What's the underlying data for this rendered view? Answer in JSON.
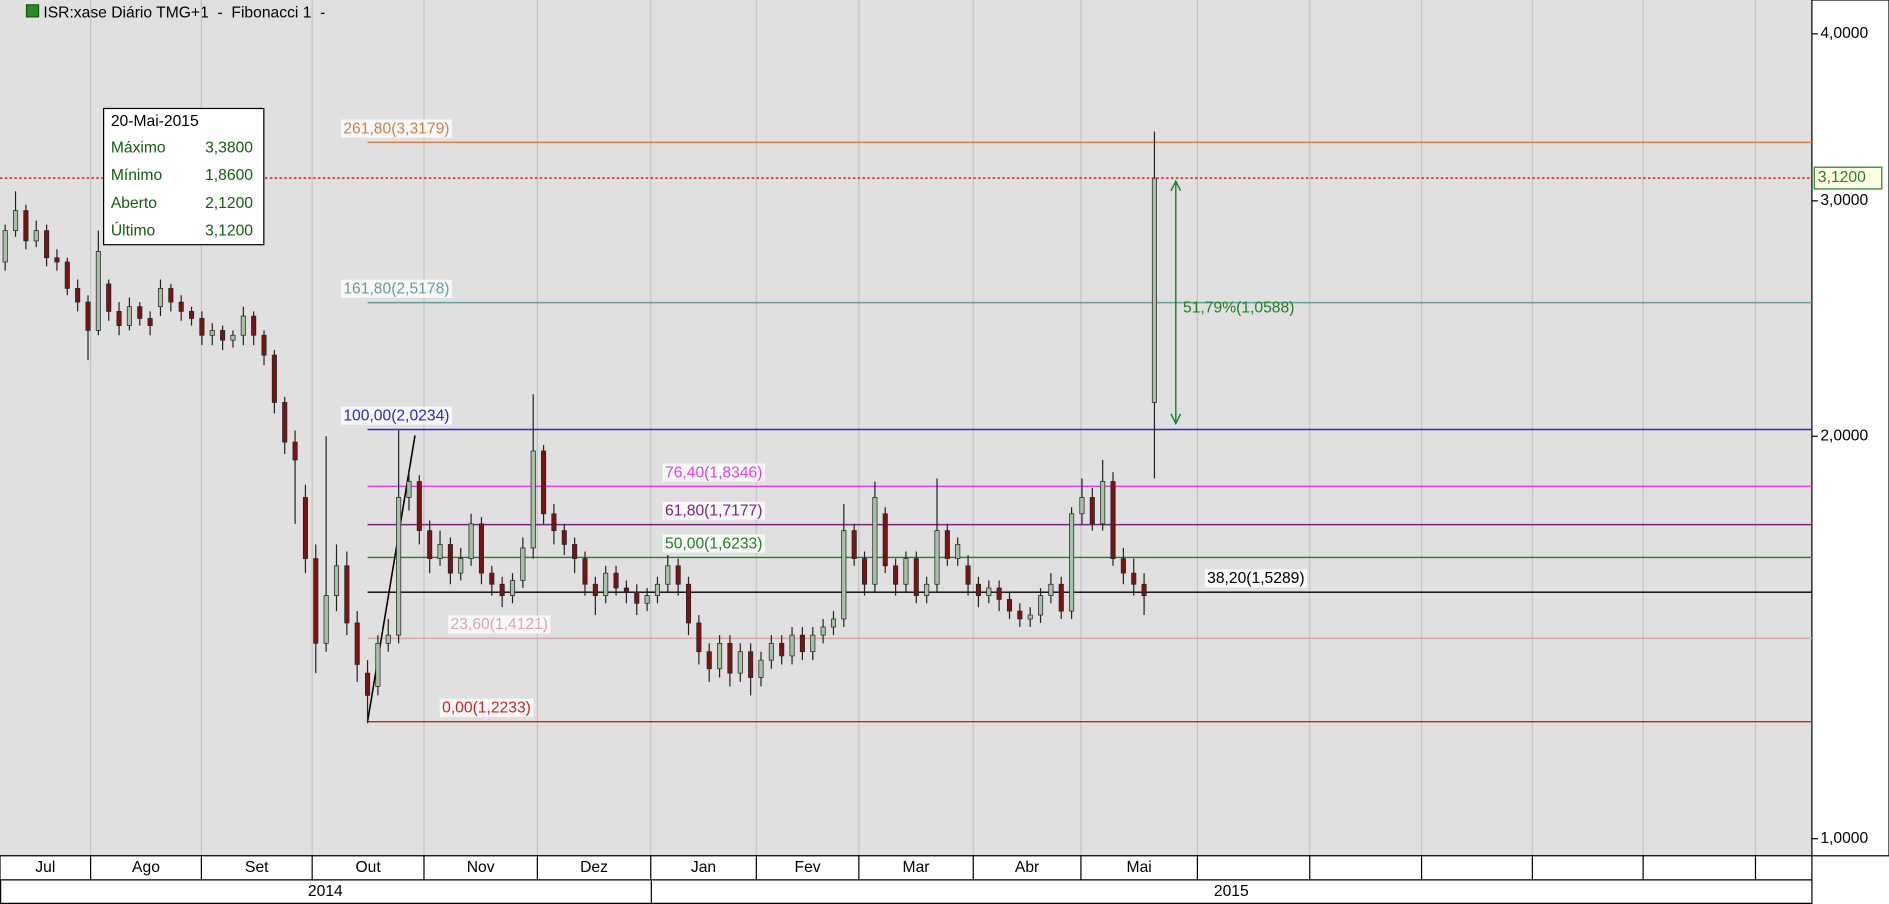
{
  "chart_data": {
    "type": "candlestick",
    "title": "ISR:xase Diário TMG+1  -  Fibonacci 1  -",
    "x": [
      1,
      3,
      5,
      7,
      9,
      11,
      13,
      15,
      17,
      19,
      21,
      23,
      25,
      27,
      29,
      31,
      33,
      35,
      37,
      39,
      41,
      43,
      45,
      47,
      49,
      51,
      53,
      55,
      57,
      59,
      61,
      63,
      65,
      67,
      69,
      71,
      73,
      75,
      77,
      79,
      81,
      83,
      85,
      87,
      89,
      91,
      93,
      95,
      97,
      99,
      101,
      103,
      105,
      107,
      109,
      111,
      113,
      115,
      117,
      119,
      121,
      123,
      125,
      127,
      129,
      131,
      133,
      135,
      137,
      139,
      141,
      143,
      145,
      147,
      149,
      151,
      153,
      155,
      157,
      159,
      161,
      163,
      165,
      167,
      169,
      171,
      173,
      175,
      177,
      179,
      181,
      183,
      185,
      187,
      189,
      191,
      193,
      195,
      197,
      199,
      201,
      203,
      205,
      207,
      209,
      211,
      213,
      215,
      217,
      219,
      221,
      223
    ],
    "open": [
      2.7,
      2.85,
      2.95,
      2.8,
      2.85,
      2.72,
      2.7,
      2.58,
      2.52,
      2.4,
      2.6,
      2.48,
      2.42,
      2.5,
      2.45,
      2.5,
      2.58,
      2.52,
      2.48,
      2.45,
      2.38,
      2.4,
      2.36,
      2.38,
      2.46,
      2.38,
      2.3,
      2.12,
      1.98,
      1.8,
      1.62,
      1.4,
      1.52,
      1.6,
      1.45,
      1.33,
      1.3,
      1.4,
      1.42,
      1.8,
      1.85,
      1.7,
      1.62,
      1.66,
      1.58,
      1.62,
      1.72,
      1.58,
      1.55,
      1.52,
      1.56,
      1.65,
      1.95,
      1.75,
      1.7,
      1.66,
      1.62,
      1.55,
      1.52,
      1.58,
      1.54,
      1.53,
      1.5,
      1.52,
      1.55,
      1.6,
      1.55,
      1.45,
      1.38,
      1.34,
      1.4,
      1.33,
      1.38,
      1.32,
      1.36,
      1.4,
      1.37,
      1.42,
      1.38,
      1.42,
      1.44,
      1.46,
      1.7,
      1.62,
      1.55,
      1.75,
      1.6,
      1.55,
      1.62,
      1.52,
      1.55,
      1.7,
      1.62,
      1.6,
      1.55,
      1.52,
      1.54,
      1.51,
      1.48,
      1.46,
      1.47,
      1.52,
      1.55,
      1.48,
      1.75,
      1.8,
      1.72,
      1.85,
      1.62,
      1.58,
      1.55,
      2.12
    ],
    "high": [
      2.88,
      3.05,
      2.98,
      2.9,
      2.88,
      2.76,
      2.72,
      2.62,
      2.55,
      2.85,
      2.62,
      2.52,
      2.54,
      2.52,
      2.48,
      2.62,
      2.6,
      2.55,
      2.5,
      2.48,
      2.43,
      2.42,
      2.4,
      2.5,
      2.48,
      2.4,
      2.32,
      2.14,
      2.02,
      1.84,
      1.66,
      2.0,
      1.66,
      1.64,
      1.48,
      1.36,
      1.42,
      1.46,
      2.02,
      1.88,
      1.87,
      1.73,
      1.7,
      1.68,
      1.65,
      1.75,
      1.74,
      1.6,
      1.57,
      1.58,
      1.68,
      2.15,
      1.97,
      1.78,
      1.72,
      1.68,
      1.64,
      1.57,
      1.6,
      1.6,
      1.56,
      1.55,
      1.54,
      1.57,
      1.63,
      1.62,
      1.57,
      1.47,
      1.4,
      1.42,
      1.42,
      1.4,
      1.4,
      1.38,
      1.42,
      1.42,
      1.44,
      1.44,
      1.44,
      1.46,
      1.48,
      1.78,
      1.72,
      1.64,
      1.85,
      1.77,
      1.62,
      1.64,
      1.64,
      1.57,
      1.86,
      1.72,
      1.68,
      1.63,
      1.57,
      1.56,
      1.56,
      1.53,
      1.5,
      1.49,
      1.54,
      1.58,
      1.57,
      1.77,
      1.86,
      1.83,
      1.92,
      1.88,
      1.65,
      1.62,
      1.58,
      3.38
    ],
    "low": [
      2.66,
      2.82,
      2.76,
      2.77,
      2.68,
      2.66,
      2.55,
      2.48,
      2.28,
      2.38,
      2.44,
      2.38,
      2.4,
      2.42,
      2.38,
      2.46,
      2.48,
      2.44,
      2.42,
      2.34,
      2.34,
      2.32,
      2.33,
      2.34,
      2.34,
      2.26,
      2.08,
      1.94,
      1.72,
      1.58,
      1.33,
      1.38,
      1.48,
      1.42,
      1.31,
      1.22,
      1.28,
      1.38,
      1.4,
      1.76,
      1.66,
      1.58,
      1.6,
      1.55,
      1.56,
      1.6,
      1.55,
      1.52,
      1.49,
      1.5,
      1.54,
      1.62,
      1.72,
      1.66,
      1.63,
      1.58,
      1.52,
      1.47,
      1.5,
      1.52,
      1.5,
      1.47,
      1.48,
      1.5,
      1.53,
      1.52,
      1.42,
      1.35,
      1.31,
      1.32,
      1.3,
      1.31,
      1.28,
      1.3,
      1.34,
      1.35,
      1.35,
      1.36,
      1.36,
      1.4,
      1.42,
      1.44,
      1.6,
      1.52,
      1.53,
      1.58,
      1.52,
      1.53,
      1.5,
      1.5,
      1.53,
      1.6,
      1.6,
      1.52,
      1.49,
      1.5,
      1.48,
      1.46,
      1.44,
      1.44,
      1.45,
      1.5,
      1.46,
      1.46,
      1.72,
      1.7,
      1.7,
      1.6,
      1.55,
      1.52,
      1.47,
      1.86
    ],
    "close": [
      2.85,
      2.95,
      2.8,
      2.85,
      2.72,
      2.7,
      2.58,
      2.52,
      2.4,
      2.75,
      2.48,
      2.42,
      2.5,
      2.45,
      2.42,
      2.58,
      2.52,
      2.48,
      2.45,
      2.38,
      2.4,
      2.36,
      2.38,
      2.46,
      2.38,
      2.3,
      2.12,
      1.98,
      1.92,
      1.62,
      1.4,
      1.52,
      1.6,
      1.45,
      1.35,
      1.28,
      1.4,
      1.42,
      1.8,
      1.85,
      1.7,
      1.62,
      1.66,
      1.58,
      1.62,
      1.72,
      1.58,
      1.55,
      1.52,
      1.56,
      1.65,
      1.95,
      1.75,
      1.7,
      1.66,
      1.62,
      1.55,
      1.52,
      1.58,
      1.54,
      1.53,
      1.5,
      1.52,
      1.55,
      1.6,
      1.55,
      1.45,
      1.38,
      1.34,
      1.4,
      1.33,
      1.38,
      1.32,
      1.36,
      1.4,
      1.37,
      1.42,
      1.38,
      1.42,
      1.44,
      1.46,
      1.7,
      1.62,
      1.55,
      1.8,
      1.6,
      1.55,
      1.62,
      1.52,
      1.55,
      1.7,
      1.62,
      1.66,
      1.55,
      1.52,
      1.54,
      1.51,
      1.48,
      1.46,
      1.47,
      1.52,
      1.55,
      1.48,
      1.75,
      1.8,
      1.72,
      1.85,
      1.62,
      1.58,
      1.55,
      1.52,
      3.12
    ],
    "up_color": "#a8c0a8",
    "down_color": "#7a1414",
    "xlim": [
      0,
      350
    ],
    "ylim": [
      0.971,
      4.24
    ],
    "log_y": true,
    "yticks": [
      {
        "value": 1,
        "label": "1,0000"
      },
      {
        "value": 2,
        "label": "2,0000"
      },
      {
        "value": 3,
        "label": "3,0000"
      },
      {
        "value": 4,
        "label": "4,0000"
      }
    ],
    "month_bounds": [
      0,
      17.5,
      38.9,
      60.3,
      81.9,
      103.8,
      125.7,
      146.1,
      165.9,
      188,
      208.8,
      231.3,
      253,
      274.6,
      296,
      317.4,
      339.1,
      350
    ],
    "month_labels": [
      "Jul",
      "Ago",
      "Set",
      "Out",
      "Nov",
      "Dez",
      "Jan",
      "Fev",
      "Mar",
      "Abr",
      "Mai",
      null,
      null,
      null,
      null,
      null,
      null
    ],
    "year_bounds": [
      0,
      125.7,
      350
    ],
    "year_labels": [
      "2014",
      "2015"
    ],
    "grid": true,
    "fibonacci": [
      {
        "value": 3.3179,
        "label": "261,80(3,3179)",
        "color": "#d0804a"
      },
      {
        "value": 2.5178,
        "label": "161,80(2,5178)",
        "color": "#6a9c9c"
      },
      {
        "value": 2.0234,
        "label": "100,00(2,0234)",
        "color": "#2828d0"
      },
      {
        "value": 1.8346,
        "label": "76,40(1,8346)",
        "color": "#e040e0"
      },
      {
        "value": 1.7177,
        "label": "61,80(1,7177)",
        "color": "#802080"
      },
      {
        "value": 1.6233,
        "label": "50,00(1,6233)",
        "color": "#208020"
      },
      {
        "value": 1.5289,
        "label": "38,20(1,5289)",
        "color": "#000000"
      },
      {
        "value": 1.4121,
        "label": "23,60(1,4121)",
        "color": "#d8a8a8"
      },
      {
        "value": 1.2233,
        "label": "0,00(1,2233)",
        "color": "#d02020"
      }
    ],
    "last_price": {
      "value": 3.12,
      "label": "3,1200",
      "color": "#e00000"
    },
    "measure": {
      "from": 2.0444,
      "to": 3.1032,
      "label": "51,79%(1,0588)",
      "color": "#208020"
    },
    "info_box": {
      "date": "20-Mai-2015",
      "rows": [
        {
          "label": "Máximo",
          "value": "3,3800"
        },
        {
          "label": "Mínimo",
          "value": "1,8600"
        },
        {
          "label": "Aberto",
          "value": "2,1200"
        },
        {
          "label": "Último",
          "value": "3,1200"
        }
      ]
    }
  }
}
